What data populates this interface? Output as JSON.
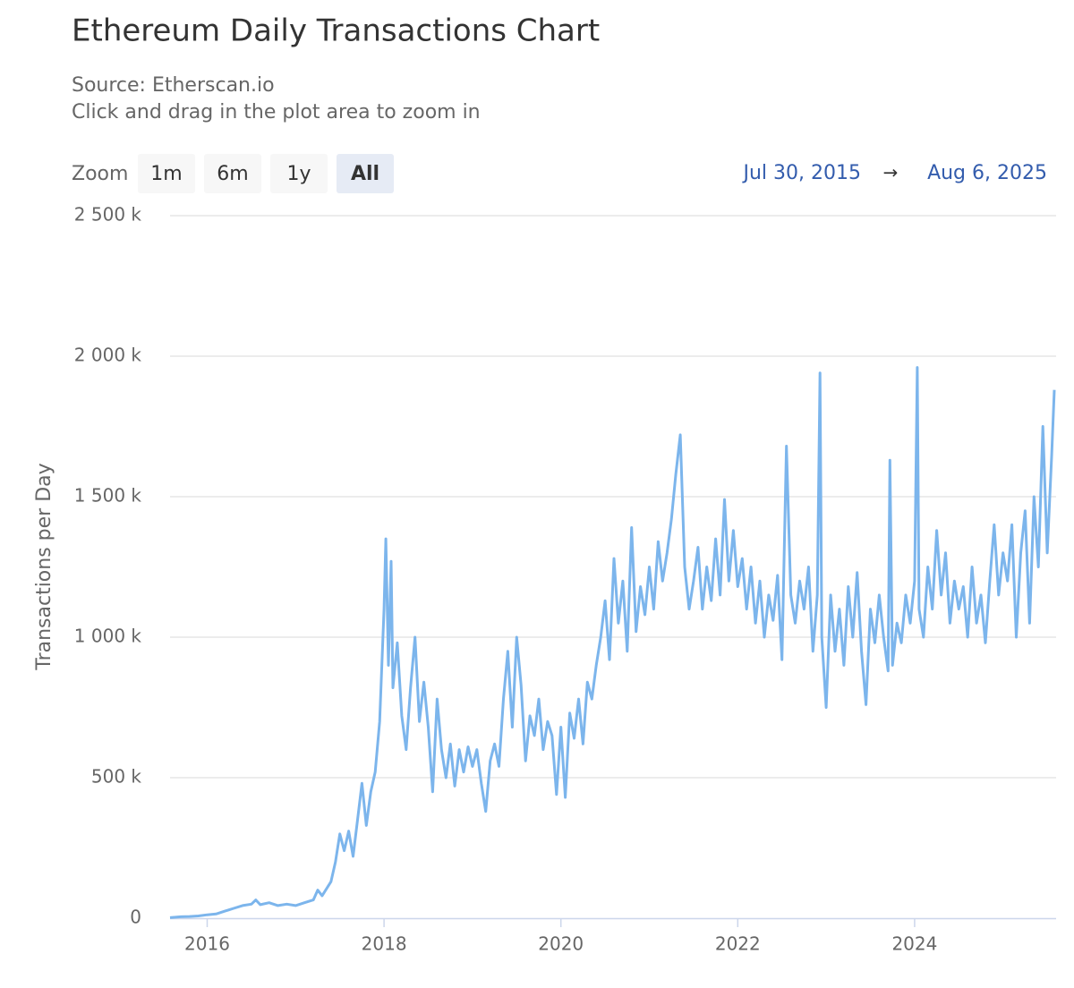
{
  "chart_data": {
    "type": "line",
    "title": "Ethereum Daily Transactions Chart",
    "subtitle": [
      "Source: Etherscan.io",
      "Click and drag in the plot area to zoom in"
    ],
    "range_selector": {
      "label": "Zoom",
      "buttons": [
        "1m",
        "6m",
        "1y",
        "All"
      ],
      "selected": 3,
      "from": "Jul 30, 2015",
      "separator": "→",
      "to": "Aug 6, 2025"
    },
    "y_axis_title": "Transactions per Day",
    "color": "#7cb5ec",
    "grid": true,
    "xlim": [
      2015.58,
      2025.6
    ],
    "xticks": [
      2016,
      2018,
      2020,
      2022,
      2024
    ],
    "ylim": [
      0,
      2500
    ],
    "yticks": [
      {
        "value": 0,
        "label": "0"
      },
      {
        "value": 500,
        "label": "500 k"
      },
      {
        "value": 1000,
        "label": "1 000 k"
      },
      {
        "value": 1500,
        "label": "1 500 k"
      },
      {
        "value": 2000,
        "label": "2 000 k"
      },
      {
        "value": 2500,
        "label": "2 500 k"
      }
    ],
    "x": [
      2015.58,
      2015.7,
      2015.8,
      2015.9,
      2016.0,
      2016.1,
      2016.2,
      2016.3,
      2016.4,
      2016.5,
      2016.55,
      2016.6,
      2016.7,
      2016.8,
      2016.9,
      2017.0,
      2017.1,
      2017.2,
      2017.25,
      2017.3,
      2017.4,
      2017.45,
      2017.5,
      2017.55,
      2017.6,
      2017.65,
      2017.7,
      2017.75,
      2017.8,
      2017.85,
      2017.9,
      2017.95,
      2018.0,
      2018.02,
      2018.05,
      2018.08,
      2018.1,
      2018.15,
      2018.2,
      2018.25,
      2018.3,
      2018.35,
      2018.4,
      2018.45,
      2018.5,
      2018.55,
      2018.6,
      2018.65,
      2018.7,
      2018.75,
      2018.8,
      2018.85,
      2018.9,
      2018.95,
      2019.0,
      2019.05,
      2019.1,
      2019.15,
      2019.2,
      2019.25,
      2019.3,
      2019.35,
      2019.4,
      2019.45,
      2019.5,
      2019.55,
      2019.6,
      2019.65,
      2019.7,
      2019.75,
      2019.8,
      2019.85,
      2019.9,
      2019.95,
      2020.0,
      2020.05,
      2020.1,
      2020.15,
      2020.2,
      2020.25,
      2020.3,
      2020.35,
      2020.4,
      2020.45,
      2020.5,
      2020.55,
      2020.6,
      2020.65,
      2020.7,
      2020.75,
      2020.8,
      2020.85,
      2020.9,
      2020.95,
      2021.0,
      2021.05,
      2021.1,
      2021.15,
      2021.2,
      2021.25,
      2021.3,
      2021.35,
      2021.4,
      2021.45,
      2021.5,
      2021.55,
      2021.6,
      2021.65,
      2021.7,
      2021.75,
      2021.8,
      2021.85,
      2021.9,
      2021.95,
      2022.0,
      2022.05,
      2022.1,
      2022.15,
      2022.2,
      2022.25,
      2022.3,
      2022.35,
      2022.4,
      2022.45,
      2022.5,
      2022.55,
      2022.6,
      2022.65,
      2022.7,
      2022.75,
      2022.8,
      2022.85,
      2022.9,
      2022.93,
      2022.95,
      2023.0,
      2023.05,
      2023.1,
      2023.15,
      2023.2,
      2023.25,
      2023.3,
      2023.35,
      2023.4,
      2023.45,
      2023.5,
      2023.55,
      2023.6,
      2023.65,
      2023.7,
      2023.72,
      2023.75,
      2023.8,
      2023.85,
      2023.9,
      2023.95,
      2024.0,
      2024.03,
      2024.05,
      2024.1,
      2024.15,
      2024.2,
      2024.25,
      2024.3,
      2024.35,
      2024.4,
      2024.45,
      2024.5,
      2024.55,
      2024.6,
      2024.65,
      2024.7,
      2024.75,
      2024.8,
      2024.85,
      2024.9,
      2024.95,
      2025.0,
      2025.05,
      2025.1,
      2025.15,
      2025.2,
      2025.25,
      2025.3,
      2025.35,
      2025.4,
      2025.45,
      2025.5,
      2025.55,
      2025.58
    ],
    "values": [
      2,
      5,
      6,
      8,
      12,
      15,
      25,
      35,
      45,
      50,
      65,
      48,
      55,
      45,
      50,
      45,
      55,
      65,
      100,
      80,
      130,
      200,
      300,
      240,
      310,
      220,
      350,
      480,
      330,
      450,
      520,
      700,
      1100,
      1350,
      900,
      1270,
      820,
      980,
      720,
      600,
      820,
      1000,
      700,
      840,
      680,
      450,
      780,
      600,
      500,
      620,
      470,
      600,
      520,
      610,
      540,
      600,
      480,
      380,
      560,
      620,
      540,
      780,
      950,
      680,
      1000,
      830,
      560,
      720,
      650,
      780,
      600,
      700,
      650,
      440,
      680,
      430,
      730,
      640,
      780,
      620,
      840,
      780,
      900,
      1000,
      1130,
      920,
      1280,
      1050,
      1200,
      950,
      1390,
      1020,
      1180,
      1080,
      1250,
      1100,
      1340,
      1200,
      1300,
      1420,
      1580,
      1720,
      1250,
      1100,
      1200,
      1320,
      1100,
      1250,
      1130,
      1350,
      1150,
      1490,
      1200,
      1380,
      1180,
      1280,
      1100,
      1250,
      1050,
      1200,
      1000,
      1150,
      1060,
      1220,
      920,
      1680,
      1150,
      1050,
      1200,
      1100,
      1250,
      950,
      1150,
      1940,
      1000,
      750,
      1150,
      950,
      1100,
      900,
      1180,
      1000,
      1230,
      950,
      760,
      1100,
      980,
      1150,
      1000,
      880,
      1630,
      900,
      1050,
      980,
      1150,
      1050,
      1200,
      1960,
      1100,
      1000,
      1250,
      1100,
      1380,
      1150,
      1300,
      1050,
      1200,
      1100,
      1180,
      1000,
      1250,
      1050,
      1150,
      980,
      1200,
      1400,
      1150,
      1300,
      1200,
      1400,
      1000,
      1300,
      1450,
      1050,
      1500,
      1250,
      1750,
      1300,
      1650,
      1880
    ]
  }
}
